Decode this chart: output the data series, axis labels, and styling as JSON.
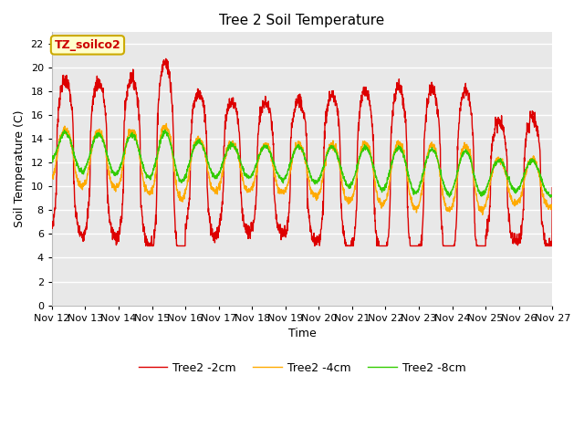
{
  "title": "Tree 2 Soil Temperature",
  "xlabel": "Time",
  "ylabel": "Soil Temperature (C)",
  "annotation_text": "TZ_soilco2",
  "annotation_color": "#cc0000",
  "annotation_bg": "#ffffcc",
  "annotation_border": "#ccaa00",
  "ylim": [
    0,
    23
  ],
  "yticks": [
    0,
    2,
    4,
    6,
    8,
    10,
    12,
    14,
    16,
    18,
    20,
    22
  ],
  "bg_plot": "#e8e8e8",
  "bg_fig": "#ffffff",
  "grid_color": "#ffffff",
  "line_colors": [
    "#dd0000",
    "#ffaa00",
    "#33cc00"
  ],
  "line_labels": [
    "Tree2 -2cm",
    "Tree2 -4cm",
    "Tree2 -8cm"
  ],
  "line_width": 1.0,
  "xtick_labels": [
    "Nov 12",
    "Nov 13",
    "Nov 14",
    "Nov 15",
    "Nov 16",
    "Nov 17",
    "Nov 18",
    "Nov 19",
    "Nov 20",
    "Nov 21",
    "Nov 22",
    "Nov 23",
    "Nov 24",
    "Nov 25",
    "Nov 26",
    "Nov 27"
  ],
  "num_days": 15,
  "samples_per_day": 144
}
